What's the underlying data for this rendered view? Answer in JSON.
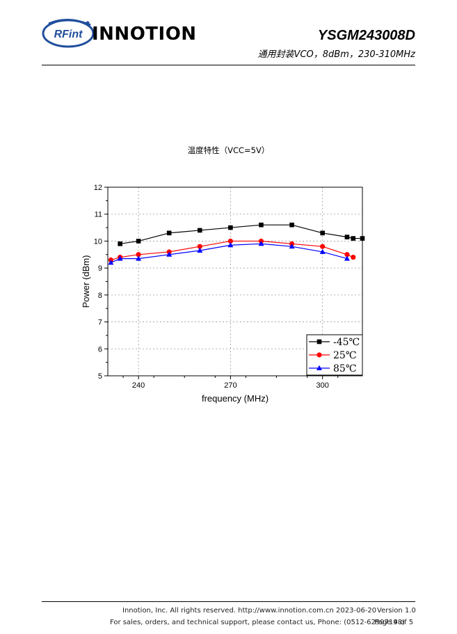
{
  "header": {
    "logo_text": "RFint",
    "company": "INNOTION",
    "model": "YSGM243008D",
    "subtitle": "通用封装VCO，8dBm，230-310MHz"
  },
  "chart_data": {
    "type": "line",
    "title": "温度特性（VCC=5V）",
    "xlabel": "frequency (MHz)",
    "ylabel": "Power (dBm)",
    "xlim": [
      230,
      313
    ],
    "ylim": [
      5,
      12
    ],
    "x_ticks": [
      240,
      270,
      300
    ],
    "y_ticks": [
      5,
      6,
      7,
      8,
      9,
      10,
      11,
      12
    ],
    "grid": true,
    "legend_position": "bottom-right",
    "series": [
      {
        "name": "-45℃",
        "color": "#000000",
        "marker": "square",
        "x": [
          234,
          240,
          250,
          260,
          270,
          280,
          290,
          300,
          308,
          310,
          313
        ],
        "y": [
          9.9,
          10.0,
          10.3,
          10.4,
          10.5,
          10.6,
          10.6,
          10.3,
          10.15,
          10.1,
          10.1
        ]
      },
      {
        "name": "25℃",
        "color": "#ff0000",
        "marker": "circle",
        "x": [
          231,
          234,
          240,
          250,
          260,
          270,
          280,
          290,
          300,
          308,
          310
        ],
        "y": [
          9.3,
          9.4,
          9.5,
          9.6,
          9.8,
          10.0,
          10.0,
          9.9,
          9.8,
          9.5,
          9.4
        ]
      },
      {
        "name": "85℃",
        "color": "#0000ff",
        "marker": "triangle",
        "x": [
          231,
          234,
          240,
          250,
          260,
          270,
          280,
          290,
          300,
          308
        ],
        "y": [
          9.2,
          9.35,
          9.35,
          9.5,
          9.65,
          9.85,
          9.9,
          9.8,
          9.6,
          9.35
        ]
      }
    ]
  },
  "footer": {
    "copyright": "Innotion, Inc. All rights reserved. http://www.innotion.com.cn  2023-06-20",
    "support": "For sales, orders, and technical support, please contact us, Phone: (0512-62997198)",
    "version": "Version 1.0",
    "page": "Page 4 of 5"
  }
}
